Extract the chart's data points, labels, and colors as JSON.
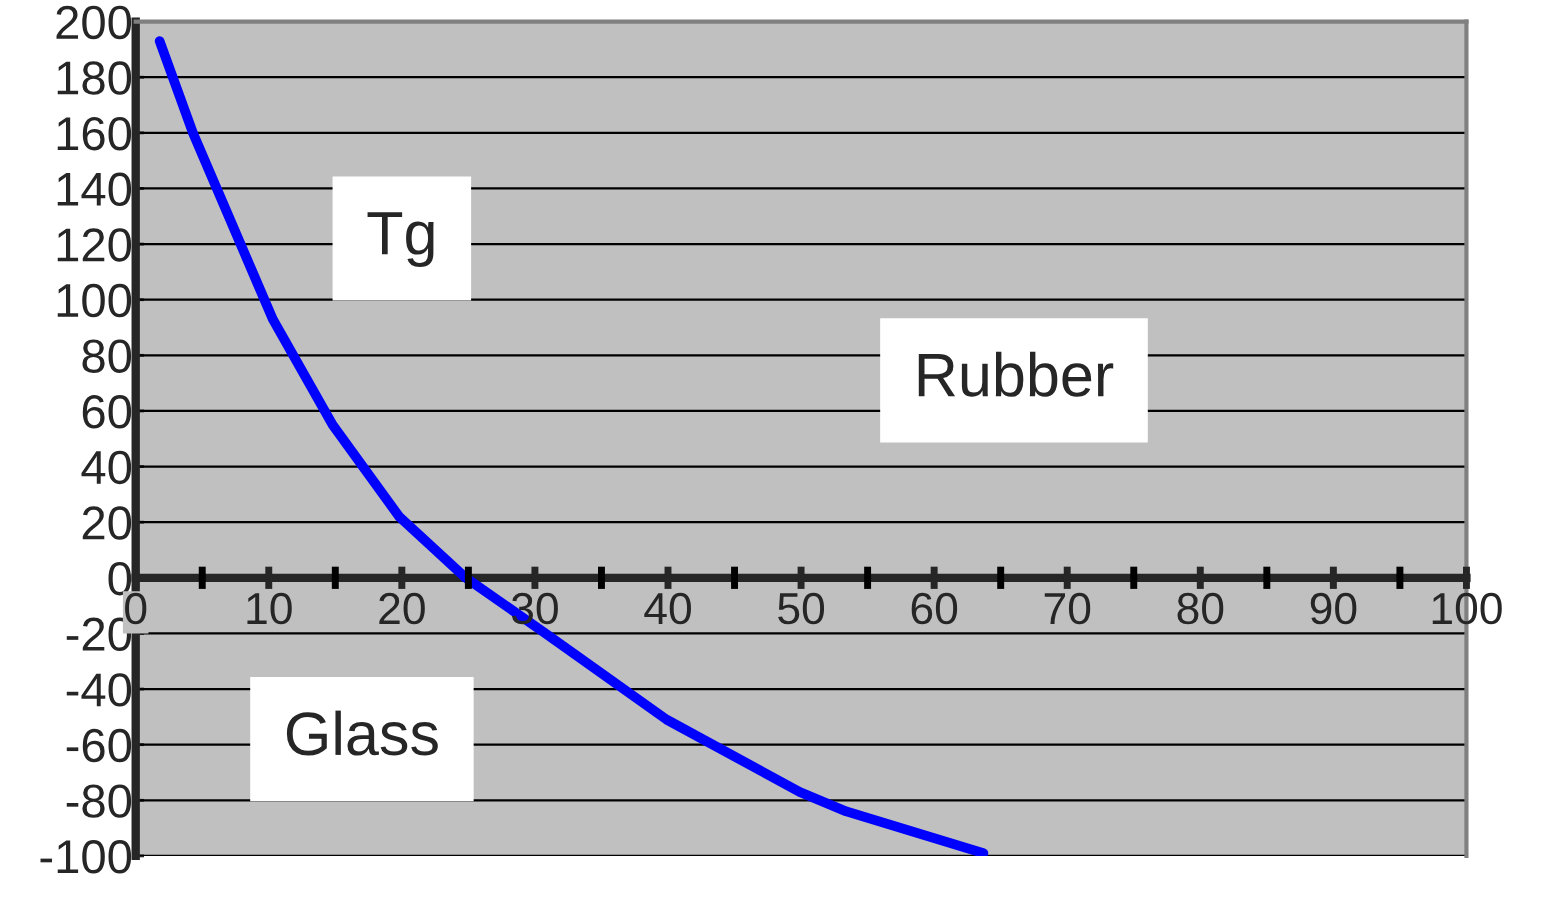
{
  "chart_data": {
    "type": "line",
    "x": [
      1.8,
      4.3,
      10.3,
      14.8,
      19.8,
      24.8,
      30.8,
      39.9,
      49.9,
      53.4,
      63.7
    ],
    "series": [
      {
        "color": "#0000ff",
        "values": [
          193,
          160,
          93,
          55,
          22,
          0,
          -20,
          -51,
          -77,
          -84,
          -99
        ]
      }
    ],
    "xlim": [
      0,
      100
    ],
    "ylim": [
      -100,
      200
    ],
    "xticks": [
      0,
      {
        "value": 5,
        "label": null
      },
      10,
      {
        "value": 15,
        "label": null
      },
      20,
      {
        "value": 25,
        "label": null
      },
      30,
      {
        "value": 35,
        "label": null
      },
      40,
      {
        "value": 45,
        "label": null
      },
      50,
      {
        "value": 55,
        "label": null
      },
      60,
      {
        "value": 65,
        "label": null
      },
      70,
      {
        "value": 75,
        "label": null
      },
      80,
      {
        "value": 85,
        "label": null
      },
      90,
      {
        "value": 95,
        "label": null
      },
      100
    ],
    "yticks": [
      -100,
      -80,
      -60,
      -40,
      -20,
      0,
      20,
      40,
      60,
      80,
      100,
      120,
      140,
      160,
      180,
      200
    ],
    "grid": "y",
    "line_style": "solid",
    "marker": "none",
    "annotations": [
      "Tg",
      "Rubber",
      "Glass"
    ]
  }
}
